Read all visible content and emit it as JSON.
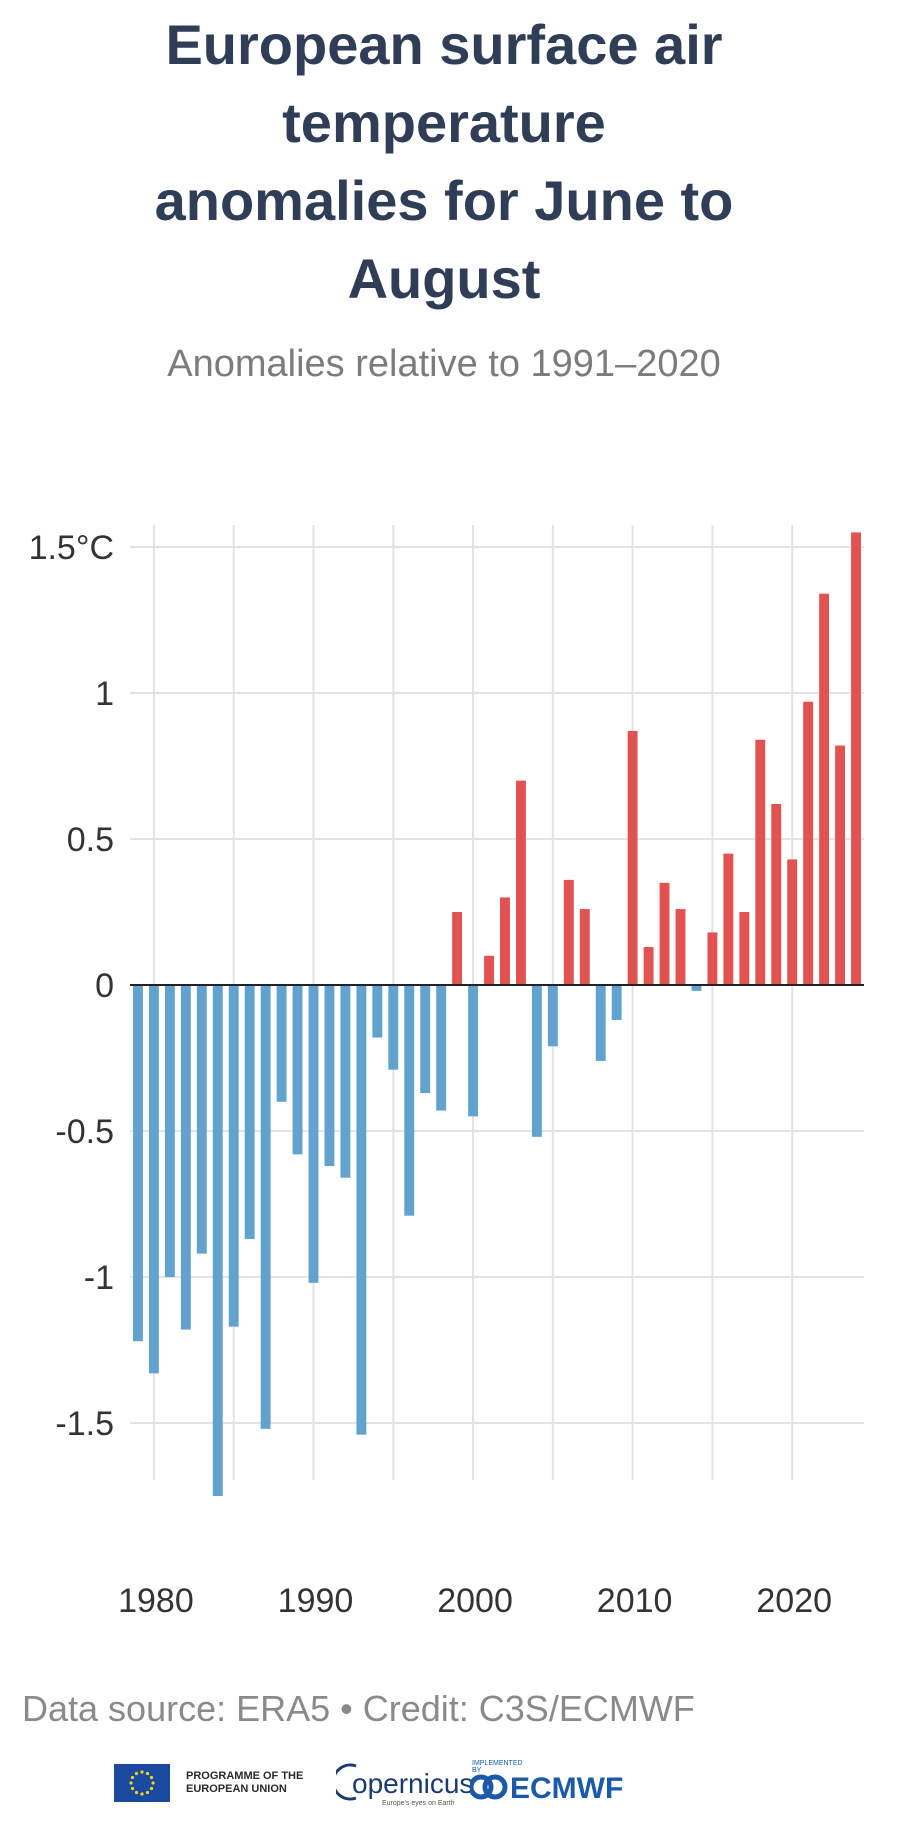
{
  "header": {
    "title": "European surface air temperature anomalies for June to August",
    "subtitle": "Anomalies relative to 1991–2020"
  },
  "footer": {
    "source": "Data source: ERA5 • Credit: C3S/ECMWF"
  },
  "logos": {
    "eu_text": "PROGRAMME OF THE EUROPEAN UNION",
    "copernicus": "opernicus",
    "copernicus_tagline": "Europe's eyes on Earth",
    "ecmwf_small": "IMPLEMENTED BY",
    "ecmwf": "ECMWF"
  },
  "colors": {
    "positive": "#e15250",
    "negative": "#61a3ce",
    "grid": "#e3e3e3",
    "zero_line": "#222222"
  },
  "chart_data": {
    "type": "bar",
    "title": "European surface air temperature anomalies for June to August",
    "subtitle": "Anomalies relative to 1991–2020",
    "xlabel": "",
    "ylabel": "",
    "unit": "°C",
    "ylim": [
      -1.75,
      1.55
    ],
    "yticks": [
      1.5,
      1,
      0.5,
      0,
      -0.5,
      -1,
      -1.5
    ],
    "ytick_labels": [
      "1.5°C",
      "1",
      "0.5",
      "0",
      "-0.5",
      "-1",
      "-1.5"
    ],
    "xticks": [
      1980,
      1990,
      2000,
      2010,
      2020
    ],
    "grid": true,
    "x": [
      1979,
      1980,
      1981,
      1982,
      1983,
      1984,
      1985,
      1986,
      1987,
      1988,
      1989,
      1990,
      1991,
      1992,
      1993,
      1994,
      1995,
      1996,
      1997,
      1998,
      1999,
      2000,
      2001,
      2002,
      2003,
      2004,
      2005,
      2006,
      2007,
      2008,
      2009,
      2010,
      2011,
      2012,
      2013,
      2014,
      2015,
      2016,
      2017,
      2018,
      2019,
      2020,
      2021,
      2022,
      2023,
      2024
    ],
    "values": [
      -1.22,
      -1.33,
      -1.0,
      -1.18,
      -0.92,
      -1.75,
      -1.17,
      -0.87,
      -1.52,
      -0.4,
      -0.58,
      -1.02,
      -0.62,
      -0.66,
      -1.54,
      -0.18,
      -0.29,
      -0.79,
      -0.37,
      -0.43,
      0.25,
      -0.45,
      0.1,
      0.3,
      0.7,
      -0.52,
      -0.21,
      0.36,
      0.26,
      -0.26,
      -0.12,
      0.87,
      0.13,
      0.35,
      0.26,
      -0.02,
      0.18,
      0.45,
      0.25,
      0.84,
      0.62,
      0.43,
      0.97,
      1.34,
      0.82,
      1.55
    ]
  }
}
